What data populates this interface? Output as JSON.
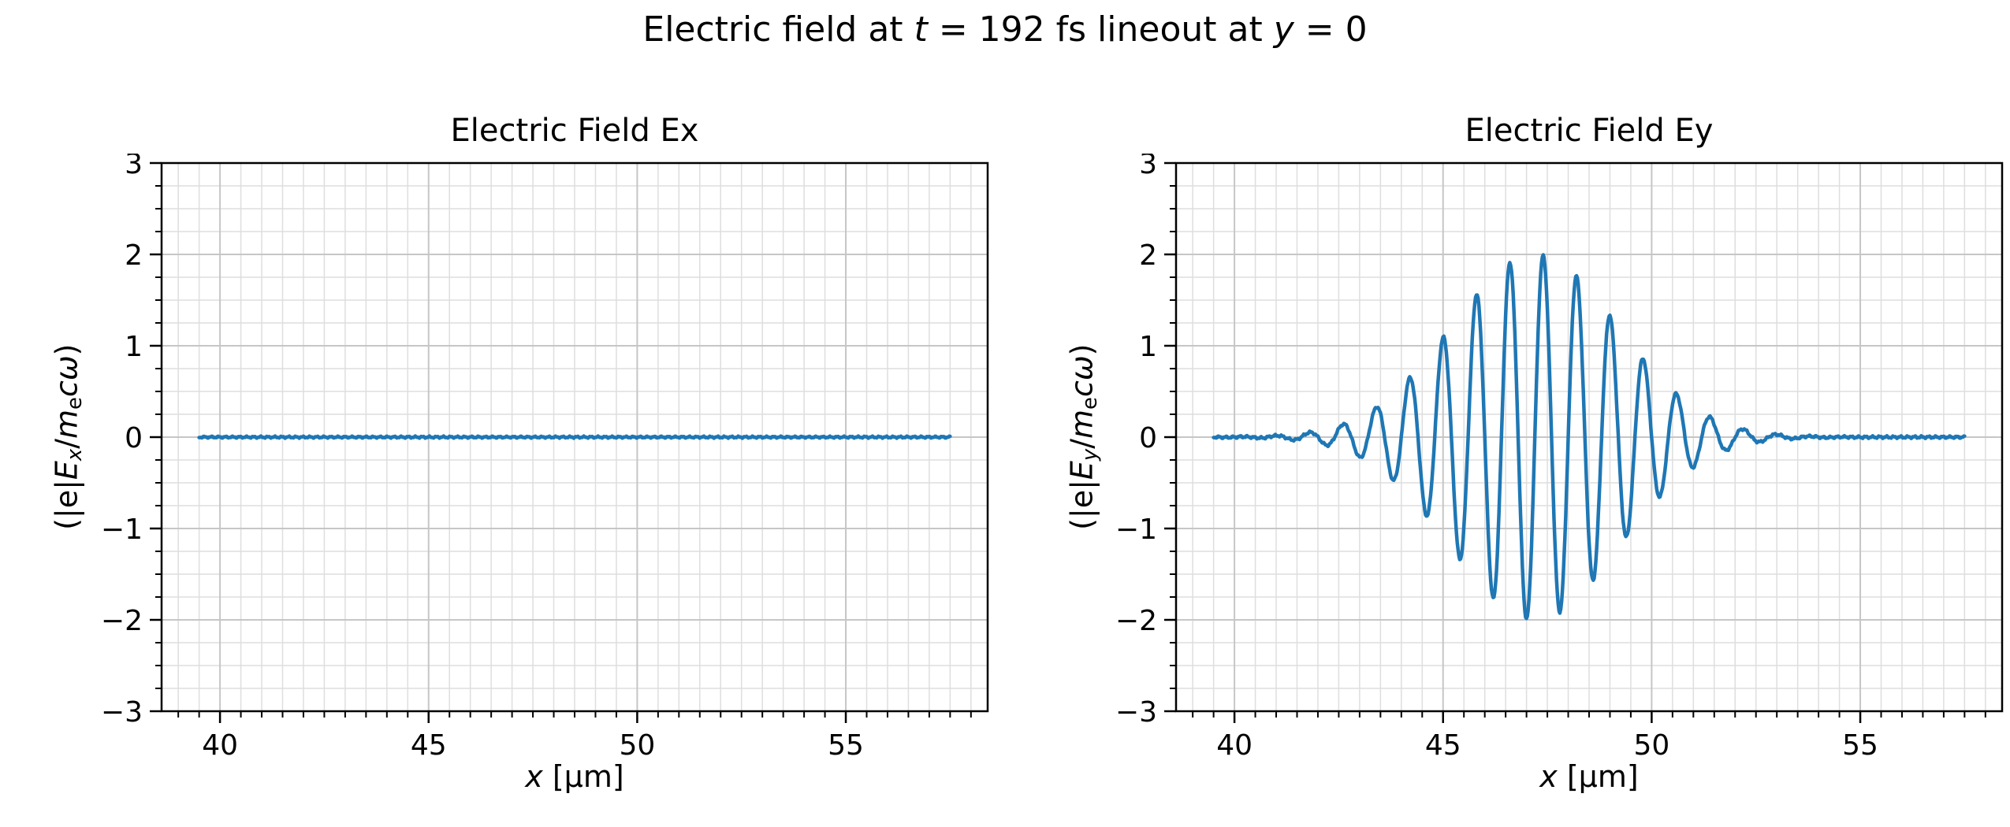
{
  "suptitle": {
    "parts": [
      {
        "t": "Electric field at "
      },
      {
        "t": "t",
        "i": true
      },
      {
        "t": " = 192 fs lineout at "
      },
      {
        "t": "y",
        "i": true
      },
      {
        "t": " = 0"
      }
    ]
  },
  "colors": {
    "line": "#1f77b4",
    "grid_major": "#c6c6c6",
    "grid_minor": "#dedede",
    "spine": "#000000",
    "background": "#ffffff"
  },
  "chart_data": [
    {
      "type": "line",
      "title": "Electric Field Ex",
      "xlabel_parts": [
        {
          "t": "x",
          "i": true
        },
        {
          "t": " [μm]"
        }
      ],
      "ylabel_parts": [
        {
          "t": "(|e|"
        },
        {
          "t": "E",
          "i": true
        },
        {
          "t": "x",
          "i": true,
          "sub": true
        },
        {
          "t": "/"
        },
        {
          "t": "m",
          "i": true
        },
        {
          "t": "e",
          "sub": true
        },
        {
          "t": "c",
          "i": true
        },
        {
          "t": "ω",
          "i": true
        },
        {
          "t": ")"
        }
      ],
      "xlim": [
        38.6,
        58.4
      ],
      "ylim": [
        -3,
        3
      ],
      "xticks": {
        "values": [
          40,
          45,
          50,
          55
        ],
        "labels": [
          "40",
          "45",
          "50",
          "55"
        ]
      },
      "yticks": {
        "values": [
          -3,
          -2,
          -1,
          0,
          1,
          2,
          3
        ],
        "labels": [
          "−3",
          "−2",
          "−1",
          "0",
          "1",
          "2",
          "3"
        ]
      },
      "x_minor_step": 0.5,
      "y_minor_step": 0.25,
      "grid": "both",
      "series": {
        "name": "Ex",
        "x_range": [
          39.5,
          57.5
        ],
        "waveform": {
          "type": "flat",
          "value": 0
        },
        "noise_amplitude": 0.012,
        "description": "Ex is approximately zero over the whole lineout"
      }
    },
    {
      "type": "line",
      "title": "Electric Field Ey",
      "xlabel_parts": [
        {
          "t": "x",
          "i": true
        },
        {
          "t": " [μm]"
        }
      ],
      "ylabel_parts": [
        {
          "t": "(|e|"
        },
        {
          "t": "E",
          "i": true
        },
        {
          "t": "y",
          "i": true,
          "sub": true
        },
        {
          "t": "/"
        },
        {
          "t": "m",
          "i": true
        },
        {
          "t": "e",
          "sub": true
        },
        {
          "t": "c",
          "i": true
        },
        {
          "t": "ω",
          "i": true
        },
        {
          "t": ")"
        }
      ],
      "xlim": [
        38.6,
        58.4
      ],
      "ylim": [
        -3,
        3
      ],
      "xticks": {
        "values": [
          40,
          45,
          50,
          55
        ],
        "labels": [
          "40",
          "45",
          "50",
          "55"
        ]
      },
      "yticks": {
        "values": [
          -3,
          -2,
          -1,
          0,
          1,
          2,
          3
        ],
        "labels": [
          "−3",
          "−2",
          "−1",
          "0",
          "1",
          "2",
          "3"
        ]
      },
      "x_minor_step": 0.5,
      "y_minor_step": 0.25,
      "grid": "both",
      "series": {
        "name": "Ey",
        "x_range": [
          39.5,
          57.5
        ],
        "waveform": {
          "type": "gaussian_pulse",
          "amplitude": 2.0,
          "center": 47.2,
          "sigma": 2.0,
          "wavelength": 0.8
        },
        "noise_amplitude": 0.015,
        "description": "Gaussian laser pulse envelope, peak |Ey| ~ 2.0 near x = 47, visible oscillations from x ~ 43 to x ~ 51",
        "peak_points": {
          "positive": [
            [
              43.4,
              0.33
            ],
            [
              44.2,
              0.65
            ],
            [
              45.0,
              1.09
            ],
            [
              45.8,
              1.57
            ],
            [
              46.6,
              1.91
            ],
            [
              47.4,
              1.99
            ],
            [
              48.2,
              1.76
            ],
            [
              49.0,
              1.33
            ],
            [
              49.8,
              0.86
            ],
            [
              50.6,
              0.47
            ]
          ],
          "negative": [
            [
              43.0,
              -0.22
            ],
            [
              43.8,
              -0.47
            ],
            [
              44.6,
              -0.86
            ],
            [
              45.4,
              -1.33
            ],
            [
              46.2,
              -1.76
            ],
            [
              47.0,
              -1.99
            ],
            [
              47.8,
              -1.91
            ],
            [
              48.6,
              -1.57
            ],
            [
              49.4,
              -1.09
            ],
            [
              50.2,
              -0.65
            ],
            [
              51.0,
              -0.33
            ]
          ]
        }
      }
    }
  ]
}
